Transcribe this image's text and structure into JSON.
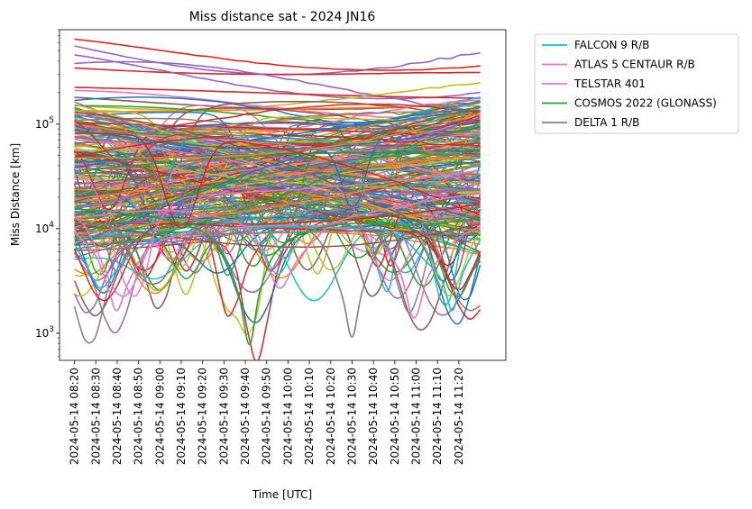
{
  "chart_data": {
    "type": "line",
    "title": "Miss distance sat - 2024 JN16",
    "xlabel": "Time [UTC]",
    "ylabel": "Miss Distance [km]",
    "yscale": "log",
    "ylim": [
      550,
      800000
    ],
    "xlim": [
      "2024-05-14 08:13",
      "2024-05-14 11:42"
    ],
    "x_tick_labels": [
      "2024-05-14 08:20",
      "2024-05-14 08:30",
      "2024-05-14 08:40",
      "2024-05-14 08:50",
      "2024-05-14 09:00",
      "2024-05-14 09:10",
      "2024-05-14 09:20",
      "2024-05-14 09:30",
      "2024-05-14 09:40",
      "2024-05-14 09:50",
      "2024-05-14 10:00",
      "2024-05-14 10:10",
      "2024-05-14 10:20",
      "2024-05-14 10:30",
      "2024-05-14 10:40",
      "2024-05-14 10:50",
      "2024-05-14 11:00",
      "2024-05-14 11:10",
      "2024-05-14 11:20"
    ],
    "y_tick_labels": [
      "10^3",
      "10^4",
      "10^5"
    ],
    "grid": false,
    "legend_position": "outside-top-right",
    "series": [
      {
        "name": "FALCON 9 R/B",
        "color": "#17becf",
        "x": [
          "2024-05-14 08:20",
          "2024-05-14 08:26",
          "2024-05-14 08:32",
          "2024-05-14 08:38",
          "2024-05-14 08:44",
          "2024-05-14 08:56",
          "2024-05-14 09:15",
          "2024-05-14 09:40",
          "2024-05-14 10:05",
          "2024-05-14 10:30",
          "2024-05-14 10:50",
          "2024-05-14 11:04",
          "2024-05-14 11:12",
          "2024-05-14 11:17",
          "2024-05-14 11:22",
          "2024-05-14 11:30"
        ],
        "values": [
          7200,
          4300,
          2700,
          3600,
          5200,
          7600,
          9500,
          10200,
          10400,
          10100,
          9000,
          5000,
          3200,
          1650,
          3800,
          7800
        ]
      },
      {
        "name": "ATLAS 5 CENTAUR R/B",
        "color": "#e377c2",
        "x": [
          "2024-05-14 08:20",
          "2024-05-14 08:30",
          "2024-05-14 08:36",
          "2024-05-14 08:40",
          "2024-05-14 08:46",
          "2024-05-14 08:56",
          "2024-05-14 09:15",
          "2024-05-14 09:40",
          "2024-05-14 10:00",
          "2024-05-14 10:20",
          "2024-05-14 10:40",
          "2024-05-14 10:52",
          "2024-05-14 10:59",
          "2024-05-14 11:06",
          "2024-05-14 11:18",
          "2024-05-14 11:30"
        ],
        "values": [
          9300,
          5500,
          2600,
          1650,
          3300,
          6800,
          9200,
          10400,
          10800,
          10300,
          8200,
          4000,
          1400,
          3600,
          7600,
          10400
        ]
      },
      {
        "name": "TELSTAR 401",
        "color": "#e377c2",
        "x": [
          "2024-05-14 08:20",
          "2024-05-14 08:40",
          "2024-05-14 09:00",
          "2024-05-14 09:20",
          "2024-05-14 09:40",
          "2024-05-14 09:48",
          "2024-05-14 09:56",
          "2024-05-14 10:05",
          "2024-05-14 10:20",
          "2024-05-14 10:40",
          "2024-05-14 11:00",
          "2024-05-14 11:30"
        ],
        "values": [
          12500,
          14000,
          15000,
          13800,
          10500,
          6000,
          2700,
          5200,
          10800,
          14500,
          17500,
          22000
        ]
      },
      {
        "name": "COSMOS 2022 (GLONASS)",
        "color": "#2ca02c",
        "x": [
          "2024-05-14 08:20",
          "2024-05-14 08:40",
          "2024-05-14 09:00",
          "2024-05-14 09:20",
          "2024-05-14 09:30",
          "2024-05-14 09:37",
          "2024-05-14 09:42",
          "2024-05-14 09:47",
          "2024-05-14 09:55",
          "2024-05-14 10:10",
          "2024-05-14 10:30",
          "2024-05-14 11:00",
          "2024-05-14 11:30"
        ],
        "values": [
          15500,
          14200,
          12500,
          9300,
          5500,
          2300,
          780,
          2600,
          6200,
          9500,
          11200,
          10800,
          12500
        ]
      },
      {
        "name": "DELTA 1 R/B",
        "color": "#7f7f7f",
        "x": [
          "2024-05-14 08:20",
          "2024-05-14 08:40",
          "2024-05-14 08:50",
          "2024-05-14 09:00",
          "2024-05-14 09:10",
          "2024-05-14 09:20",
          "2024-05-14 09:40",
          "2024-05-14 10:00",
          "2024-05-14 10:15",
          "2024-05-14 10:25",
          "2024-05-14 10:30",
          "2024-05-14 10:35",
          "2024-05-14 10:45",
          "2024-05-14 11:00",
          "2024-05-14 11:30"
        ],
        "values": [
          11500,
          9800,
          3600,
          3100,
          6500,
          10500,
          12500,
          11800,
          7500,
          2400,
          920,
          2600,
          7800,
          11200,
          13500
        ]
      }
    ]
  }
}
